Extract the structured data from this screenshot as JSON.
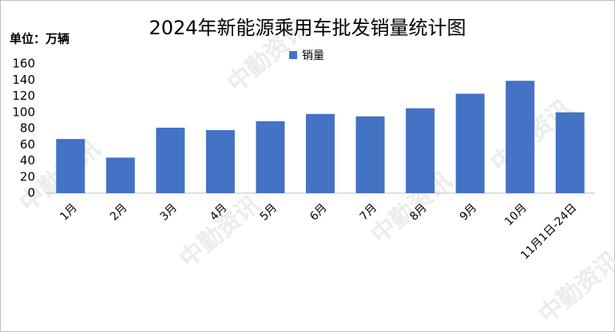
{
  "chart_data": {
    "type": "bar",
    "title": "2024年新能源乘用车批发销量统计图",
    "unit_label": "单位：万辆",
    "watermark": "中勤资讯",
    "categories": [
      "1月",
      "2月",
      "3月",
      "4月",
      "5月",
      "6月",
      "7月",
      "8月",
      "9月",
      "10月",
      "11月1日-24日"
    ],
    "series": [
      {
        "name": "销量",
        "color": "#4472c4",
        "values": [
          67,
          44,
          81,
          78,
          89,
          98,
          95,
          105,
          123,
          139,
          100
        ]
      }
    ],
    "ylim": [
      0,
      160
    ],
    "yticks": [
      0,
      20,
      40,
      60,
      80,
      100,
      120,
      140,
      160
    ],
    "grid": false,
    "legend": "top"
  }
}
